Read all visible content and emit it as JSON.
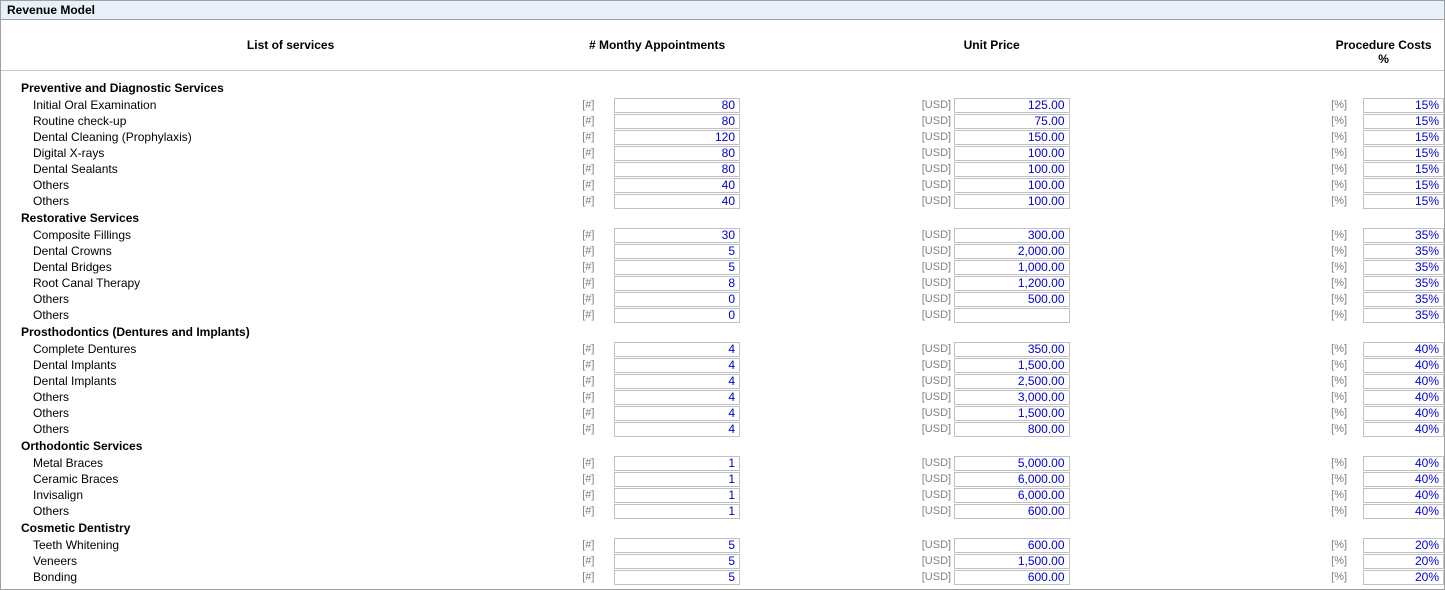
{
  "panel_title": "Revenue Model",
  "columns": {
    "service": "List of services",
    "appointments": "# Monthy Appointments",
    "unit_price": "Unit Price",
    "procedure_cost": "Procedure Costs %"
  },
  "unit_labels": {
    "count": "[#]",
    "currency": "[USD]",
    "percent": "[%]"
  },
  "categories": [
    {
      "name": "Preventive and Diagnostic Services",
      "rows": [
        {
          "service": "Initial Oral Examination",
          "appts": "80",
          "price": "125.00",
          "cost": "15%"
        },
        {
          "service": "Routine check-up",
          "appts": "80",
          "price": "75.00",
          "cost": "15%"
        },
        {
          "service": "Dental Cleaning (Prophylaxis)",
          "appts": "120",
          "price": "150.00",
          "cost": "15%"
        },
        {
          "service": "Digital X-rays",
          "appts": "80",
          "price": "100.00",
          "cost": "15%"
        },
        {
          "service": "Dental Sealants",
          "appts": "80",
          "price": "100.00",
          "cost": "15%"
        },
        {
          "service": "Others",
          "appts": "40",
          "price": "100.00",
          "cost": "15%"
        },
        {
          "service": "Others",
          "appts": "40",
          "price": "100.00",
          "cost": "15%"
        }
      ]
    },
    {
      "name": "Restorative Services",
      "rows": [
        {
          "service": "Composite Fillings",
          "appts": "30",
          "price": "300.00",
          "cost": "35%"
        },
        {
          "service": "Dental Crowns",
          "appts": "5",
          "price": "2,000.00",
          "cost": "35%"
        },
        {
          "service": "Dental Bridges",
          "appts": "5",
          "price": "1,000.00",
          "cost": "35%"
        },
        {
          "service": "Root Canal Therapy",
          "appts": "8",
          "price": "1,200.00",
          "cost": "35%"
        },
        {
          "service": "Others",
          "appts": "0",
          "price": "500.00",
          "cost": "35%"
        },
        {
          "service": "Others",
          "appts": "0",
          "price": "",
          "cost": "35%"
        }
      ]
    },
    {
      "name": "Prosthodontics (Dentures and Implants)",
      "rows": [
        {
          "service": "Complete Dentures",
          "appts": "4",
          "price": "350.00",
          "cost": "40%"
        },
        {
          "service": "Dental Implants",
          "appts": "4",
          "price": "1,500.00",
          "cost": "40%"
        },
        {
          "service": "Dental Implants",
          "appts": "4",
          "price": "2,500.00",
          "cost": "40%"
        },
        {
          "service": "Others",
          "appts": "4",
          "price": "3,000.00",
          "cost": "40%"
        },
        {
          "service": "Others",
          "appts": "4",
          "price": "1,500.00",
          "cost": "40%"
        },
        {
          "service": "Others",
          "appts": "4",
          "price": "800.00",
          "cost": "40%"
        }
      ]
    },
    {
      "name": "Orthodontic Services",
      "rows": [
        {
          "service": "Metal Braces",
          "appts": "1",
          "price": "5,000.00",
          "cost": "40%"
        },
        {
          "service": "Ceramic Braces",
          "appts": "1",
          "price": "6,000.00",
          "cost": "40%"
        },
        {
          "service": "Invisalign",
          "appts": "1",
          "price": "6,000.00",
          "cost": "40%"
        },
        {
          "service": "Others",
          "appts": "1",
          "price": "600.00",
          "cost": "40%"
        }
      ]
    },
    {
      "name": "Cosmetic Dentistry",
      "rows": [
        {
          "service": "Teeth Whitening",
          "appts": "5",
          "price": "600.00",
          "cost": "20%"
        },
        {
          "service": "Veneers",
          "appts": "5",
          "price": "1,500.00",
          "cost": "20%"
        },
        {
          "service": "Bonding",
          "appts": "5",
          "price": "600.00",
          "cost": "20%"
        }
      ]
    }
  ]
}
